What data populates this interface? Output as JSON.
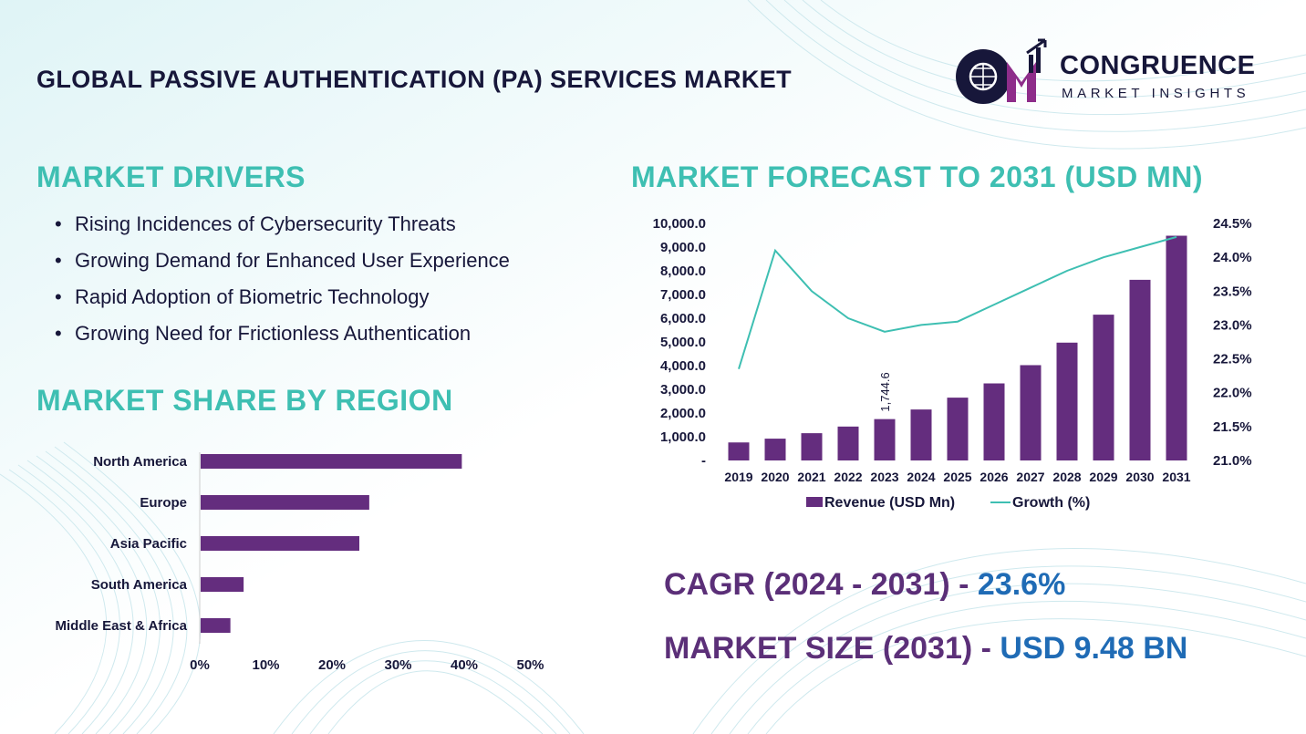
{
  "header": {
    "title": "GLOBAL PASSIVE AUTHENTICATION (PA) SERVICES MARKET",
    "logo_name": "CONGRUENCE",
    "logo_sub": "MARKET INSIGHTS",
    "logo_letters": "CM"
  },
  "drivers": {
    "title": "MARKET DRIVERS",
    "items": [
      "Rising Incidences of Cybersecurity Threats",
      "Growing Demand for Enhanced User Experience",
      "Rapid Adoption of Biometric Technology",
      "Growing Need for Frictionless Authentication"
    ]
  },
  "region": {
    "title": "MARKET SHARE BY REGION"
  },
  "forecast": {
    "title": "MARKET FORECAST TO 2031 (USD MN)"
  },
  "summary": {
    "cagr_label": "CAGR (2024 - 2031)",
    "cagr_sep": " - ",
    "cagr_value": "23.6%",
    "size_label": "MARKET SIZE (2031)",
    "size_sep": " - ",
    "size_value": "USD 9.48 BN"
  },
  "colors": {
    "bar": "#642d7e",
    "line": "#3ebfb2",
    "teal_heading": "#3ebfb2",
    "dark_text": "#17173a",
    "blue_value": "#1f6bb5"
  },
  "chart_data": [
    {
      "type": "bar",
      "orientation": "horizontal",
      "categories": [
        "North America",
        "Europe",
        "Asia Pacific",
        "South America",
        "Middle East & Africa"
      ],
      "values": [
        39.5,
        25.5,
        24.0,
        6.5,
        4.5
      ],
      "x_ticks": [
        "0%",
        "10%",
        "20%",
        "30%",
        "40%",
        "50%"
      ],
      "xlim": [
        0,
        50
      ],
      "grid": false
    },
    {
      "type": "bar+line",
      "categories": [
        "2019",
        "2020",
        "2021",
        "2022",
        "2023",
        "2024",
        "2025",
        "2026",
        "2027",
        "2028",
        "2029",
        "2030",
        "2031"
      ],
      "series": [
        {
          "name": "Revenue (USD Mn)",
          "type": "bar",
          "axis": "left",
          "values": [
            760,
            920,
            1150,
            1430,
            1744.6,
            2150,
            2650,
            3250,
            4020,
            4970,
            6150,
            7620,
            9480
          ]
        },
        {
          "name": "Growth (%)",
          "type": "line",
          "axis": "right",
          "values": [
            22.35,
            24.1,
            23.5,
            23.1,
            22.9,
            23.0,
            23.05,
            23.3,
            23.55,
            23.8,
            24.0,
            24.15,
            24.3
          ]
        }
      ],
      "data_labels": [
        {
          "category": "2023",
          "text": "1,744.6"
        }
      ],
      "y_left_ticks": [
        "-",
        "1,000.0",
        "2,000.0",
        "3,000.0",
        "4,000.0",
        "5,000.0",
        "6,000.0",
        "7,000.0",
        "8,000.0",
        "9,000.0",
        "10,000.0"
      ],
      "ylim_left": [
        0,
        10000
      ],
      "y_right_ticks": [
        "21.0%",
        "21.5%",
        "22.0%",
        "22.5%",
        "23.0%",
        "23.5%",
        "24.0%",
        "24.5%"
      ],
      "ylim_right": [
        21.0,
        24.5
      ],
      "legend": "bottom",
      "grid": false
    }
  ]
}
